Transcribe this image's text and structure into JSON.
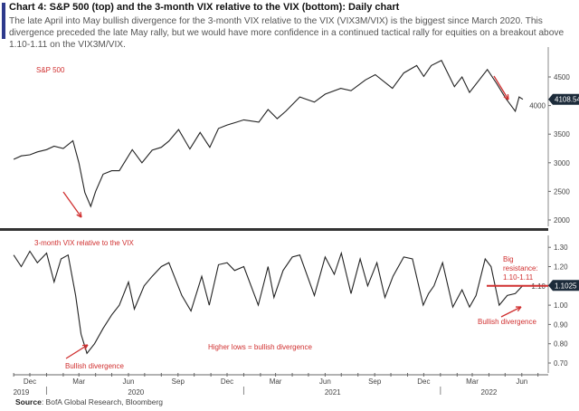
{
  "header": {
    "title": "Chart 4: S&P 500 (top) and the 3-month VIX relative to the VIX (bottom): Daily chart",
    "subtitle": "The late April into May bullish divergence for the 3-month VIX relative to the VIX (VIX3M/VIX) is the biggest since March 2020. This divergence preceded the late May rally, but we would have more confidence in a continued tactical rally for equities on a breakout above 1.10-1.11 on the VIX3M/VIX."
  },
  "source": {
    "label": "Source",
    "text": ": BofA Global Research, Bloomberg"
  },
  "chart_data": [
    {
      "type": "line",
      "title": "S&P 500",
      "ylim": [
        1900,
        4800
      ],
      "yticks": [
        2000,
        2500,
        3000,
        3500,
        4000,
        4500
      ],
      "last_value_label": "4108.54",
      "line_color": "#222222",
      "label_color": "#d03030",
      "x": [
        "2019-11-01",
        "2019-11-15",
        "2019-12-01",
        "2019-12-15",
        "2020-01-01",
        "2020-01-15",
        "2020-02-01",
        "2020-02-19",
        "2020-03-01",
        "2020-03-12",
        "2020-03-23",
        "2020-04-01",
        "2020-04-15",
        "2020-05-01",
        "2020-05-15",
        "2020-06-08",
        "2020-06-26",
        "2020-07-15",
        "2020-08-01",
        "2020-08-15",
        "2020-09-02",
        "2020-09-23",
        "2020-10-12",
        "2020-10-30",
        "2020-11-15",
        "2020-12-01",
        "2020-12-15",
        "2021-01-01",
        "2021-01-29",
        "2021-02-15",
        "2021-03-04",
        "2021-03-20",
        "2021-04-15",
        "2021-05-12",
        "2021-06-01",
        "2021-06-30",
        "2021-07-19",
        "2021-08-15",
        "2021-09-02",
        "2021-10-04",
        "2021-10-25",
        "2021-11-18",
        "2021-12-01",
        "2021-12-15",
        "2022-01-03",
        "2022-01-27",
        "2022-02-10",
        "2022-02-24",
        "2022-03-29",
        "2022-04-15",
        "2022-05-02",
        "2022-05-20",
        "2022-05-27",
        "2022-06-03"
      ],
      "y": [
        3060,
        3120,
        3140,
        3190,
        3230,
        3290,
        3250,
        3386,
        3000,
        2480,
        2237,
        2500,
        2800,
        2860,
        2860,
        3230,
        3000,
        3220,
        3270,
        3380,
        3580,
        3240,
        3530,
        3270,
        3600,
        3660,
        3700,
        3750,
        3710,
        3930,
        3770,
        3900,
        4150,
        4060,
        4200,
        4300,
        4260,
        4450,
        4540,
        4300,
        4570,
        4700,
        4510,
        4700,
        4790,
        4330,
        4500,
        4230,
        4630,
        4390,
        4130,
        3900,
        4150,
        4108.54
      ],
      "annotations": [
        {
          "kind": "arrow",
          "points_to": "2020-03 low"
        },
        {
          "kind": "arrow",
          "points_to": "2022-05 low"
        }
      ]
    },
    {
      "type": "line",
      "title": "3-month VIX relative to the VIX",
      "ylim": [
        0.65,
        1.36
      ],
      "yticks": [
        0.7,
        0.8,
        0.9,
        1.0,
        1.1,
        1.2,
        1.3
      ],
      "last_value_label": "1.1025",
      "line_color": "#222222",
      "label_color": "#d03030",
      "x": [
        "2019-11-01",
        "2019-11-15",
        "2019-12-01",
        "2019-12-15",
        "2020-01-01",
        "2020-01-15",
        "2020-01-28",
        "2020-02-10",
        "2020-02-24",
        "2020-03-05",
        "2020-03-16",
        "2020-03-30",
        "2020-04-15",
        "2020-05-01",
        "2020-05-15",
        "2020-06-01",
        "2020-06-12",
        "2020-06-30",
        "2020-07-15",
        "2020-08-01",
        "2020-08-15",
        "2020-09-08",
        "2020-09-25",
        "2020-10-15",
        "2020-10-29",
        "2020-11-15",
        "2020-12-01",
        "2020-12-15",
        "2021-01-01",
        "2021-01-28",
        "2021-02-15",
        "2021-02-26",
        "2021-03-15",
        "2021-04-01",
        "2021-04-15",
        "2021-05-12",
        "2021-06-01",
        "2021-06-18",
        "2021-07-01",
        "2021-07-19",
        "2021-08-05",
        "2021-08-19",
        "2021-09-05",
        "2021-09-20",
        "2021-10-05",
        "2021-10-25",
        "2021-11-10",
        "2021-11-30",
        "2021-12-10",
        "2021-12-20",
        "2022-01-05",
        "2022-01-24",
        "2022-02-10",
        "2022-02-24",
        "2022-03-08",
        "2022-03-25",
        "2022-04-05",
        "2022-04-20",
        "2022-05-05",
        "2022-05-20",
        "2022-06-03"
      ],
      "y": [
        1.26,
        1.2,
        1.28,
        1.22,
        1.27,
        1.12,
        1.24,
        1.26,
        1.05,
        0.85,
        0.75,
        0.8,
        0.88,
        0.95,
        1.0,
        1.12,
        0.98,
        1.1,
        1.15,
        1.2,
        1.22,
        1.05,
        0.97,
        1.15,
        1.0,
        1.21,
        1.22,
        1.18,
        1.2,
        1.0,
        1.2,
        1.04,
        1.18,
        1.25,
        1.26,
        1.05,
        1.25,
        1.16,
        1.27,
        1.06,
        1.24,
        1.1,
        1.22,
        1.04,
        1.15,
        1.25,
        1.24,
        1.0,
        1.06,
        1.1,
        1.22,
        0.99,
        1.08,
        0.99,
        1.05,
        1.24,
        1.2,
        1.0,
        1.05,
        1.06,
        1.1025
      ],
      "annotations": [
        {
          "text": "Bullish divergence",
          "near": "2020-03"
        },
        {
          "text": "Higher lows = bullish divergence"
        },
        {
          "text_lines": [
            "Big",
            "resistance:",
            "1.10-1.11"
          ],
          "level": 1.1
        },
        {
          "text": "Bullish divergence",
          "near": "2022-05"
        }
      ]
    }
  ],
  "x_axis": {
    "months": [
      {
        "label": "Dec",
        "date": "2019-12-01"
      },
      {
        "label": "Mar",
        "date": "2020-03-01"
      },
      {
        "label": "Jun",
        "date": "2020-06-01"
      },
      {
        "label": "Sep",
        "date": "2020-09-01"
      },
      {
        "label": "Dec",
        "date": "2020-12-01"
      },
      {
        "label": "Mar",
        "date": "2021-03-01"
      },
      {
        "label": "Jun",
        "date": "2021-06-01"
      },
      {
        "label": "Sep",
        "date": "2021-09-01"
      },
      {
        "label": "Dec",
        "date": "2021-12-01"
      },
      {
        "label": "Mar",
        "date": "2022-03-01"
      },
      {
        "label": "Jun",
        "date": "2022-06-01"
      }
    ],
    "years": [
      {
        "label": "2019",
        "date": "2019-11-15"
      },
      {
        "label": "2020",
        "date": "2020-06-15"
      },
      {
        "label": "2021",
        "date": "2021-06-15"
      },
      {
        "label": "2022",
        "date": "2022-04-01"
      }
    ]
  }
}
